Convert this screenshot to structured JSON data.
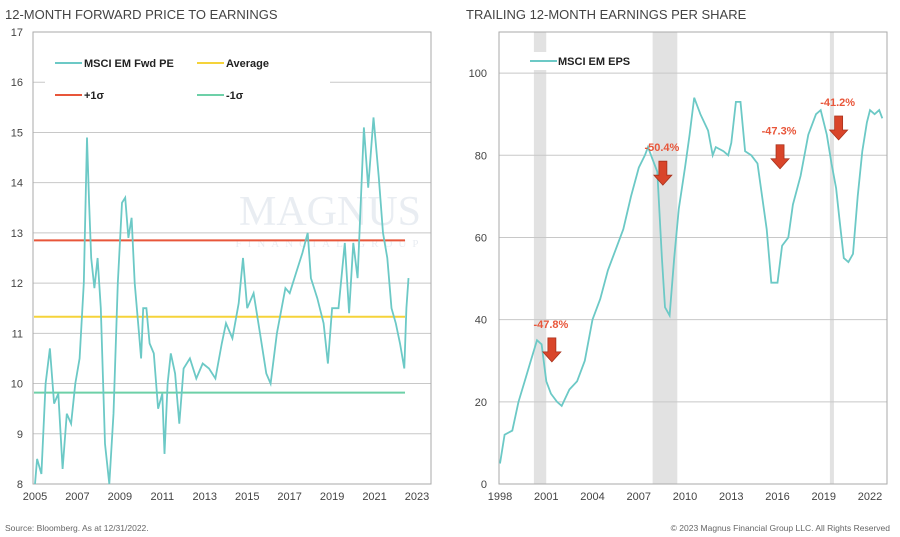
{
  "footer": {
    "source": "Source: Bloomberg. As at 12/31/2022.",
    "copyright": "© 2023 Magnus Financial Group LLC. All Rights Reserved"
  },
  "watermark": {
    "text": "MAGNUS",
    "sub": "FINANCIAL GROUP"
  },
  "colors": {
    "series": "#6cc9c6",
    "average": "#f5d33a",
    "plus": "#e8563a",
    "minus": "#6dd0a8",
    "recession": "#e2e2e2",
    "arrow": "#d9452a"
  },
  "chart_data": [
    {
      "type": "line",
      "title": "12-MONTH FORWARD PRICE TO EARNINGS",
      "xlim": [
        2005,
        2023
      ],
      "ylim": [
        8,
        17
      ],
      "xticks": [
        "2005",
        "2007",
        "2009",
        "2011",
        "2013",
        "2015",
        "2017",
        "2019",
        "2021",
        "2023"
      ],
      "yticks": [
        "8",
        "9",
        "10",
        "11",
        "12",
        "13",
        "14",
        "15",
        "16",
        "17"
      ],
      "legend": [
        "MSCI EM Fwd PE",
        "Average",
        "+1σ",
        "-1σ"
      ],
      "legend_position": "top-left",
      "reference_lines": {
        "average": 11.33,
        "plus_1_sigma": 12.85,
        "minus_1_sigma": 9.82
      },
      "series": [
        {
          "name": "MSCI EM Fwd PE",
          "points": [
            [
              2005.0,
              8.0
            ],
            [
              2005.1,
              8.5
            ],
            [
              2005.3,
              8.2
            ],
            [
              2005.5,
              10.0
            ],
            [
              2005.7,
              10.7
            ],
            [
              2005.9,
              9.6
            ],
            [
              2006.1,
              9.8
            ],
            [
              2006.3,
              8.3
            ],
            [
              2006.5,
              9.4
            ],
            [
              2006.7,
              9.2
            ],
            [
              2006.9,
              10.0
            ],
            [
              2007.1,
              10.5
            ],
            [
              2007.3,
              12.0
            ],
            [
              2007.45,
              14.9
            ],
            [
              2007.55,
              13.6
            ],
            [
              2007.65,
              12.5
            ],
            [
              2007.8,
              11.9
            ],
            [
              2007.95,
              12.5
            ],
            [
              2008.1,
              11.5
            ],
            [
              2008.3,
              8.8
            ],
            [
              2008.5,
              8.0
            ],
            [
              2008.7,
              9.4
            ],
            [
              2008.9,
              12.0
            ],
            [
              2009.1,
              13.6
            ],
            [
              2009.25,
              13.7
            ],
            [
              2009.4,
              12.9
            ],
            [
              2009.55,
              13.3
            ],
            [
              2009.7,
              12.0
            ],
            [
              2009.9,
              11.0
            ],
            [
              2010.0,
              10.5
            ],
            [
              2010.1,
              11.5
            ],
            [
              2010.25,
              11.5
            ],
            [
              2010.4,
              10.8
            ],
            [
              2010.6,
              10.6
            ],
            [
              2010.8,
              9.5
            ],
            [
              2011.0,
              9.8
            ],
            [
              2011.1,
              8.6
            ],
            [
              2011.25,
              10.0
            ],
            [
              2011.4,
              10.6
            ],
            [
              2011.6,
              10.2
            ],
            [
              2011.8,
              9.2
            ],
            [
              2012.0,
              10.3
            ],
            [
              2012.3,
              10.5
            ],
            [
              2012.6,
              10.1
            ],
            [
              2012.9,
              10.4
            ],
            [
              2013.2,
              10.3
            ],
            [
              2013.5,
              10.1
            ],
            [
              2013.8,
              10.8
            ],
            [
              2014.0,
              11.2
            ],
            [
              2014.3,
              10.9
            ],
            [
              2014.6,
              11.6
            ],
            [
              2014.8,
              12.5
            ],
            [
              2015.0,
              11.5
            ],
            [
              2015.3,
              11.8
            ],
            [
              2015.6,
              11.0
            ],
            [
              2015.9,
              10.2
            ],
            [
              2016.1,
              10.0
            ],
            [
              2016.4,
              11.0
            ],
            [
              2016.8,
              11.9
            ],
            [
              2017.0,
              11.8
            ],
            [
              2017.3,
              12.2
            ],
            [
              2017.6,
              12.6
            ],
            [
              2017.85,
              13.0
            ],
            [
              2018.0,
              12.1
            ],
            [
              2018.3,
              11.7
            ],
            [
              2018.6,
              11.2
            ],
            [
              2018.8,
              10.4
            ],
            [
              2019.0,
              11.5
            ],
            [
              2019.3,
              11.5
            ],
            [
              2019.6,
              12.8
            ],
            [
              2019.8,
              11.4
            ],
            [
              2020.0,
              12.8
            ],
            [
              2020.2,
              12.1
            ],
            [
              2020.5,
              15.1
            ],
            [
              2020.7,
              13.9
            ],
            [
              2020.95,
              15.3
            ],
            [
              2021.2,
              14.1
            ],
            [
              2021.4,
              13.0
            ],
            [
              2021.6,
              12.5
            ],
            [
              2021.8,
              11.5
            ],
            [
              2022.0,
              11.2
            ],
            [
              2022.2,
              10.8
            ],
            [
              2022.4,
              10.3
            ],
            [
              2022.5,
              11.5
            ],
            [
              2022.6,
              12.1
            ]
          ]
        }
      ]
    },
    {
      "type": "line",
      "title": "TRAILING 12-MONTH EARNINGS PER SHARE",
      "xlim": [
        1998,
        2023.1
      ],
      "ylim": [
        0,
        110
      ],
      "xticks": [
        "1998",
        "2001",
        "2004",
        "2007",
        "2010",
        "2013",
        "2016",
        "2019",
        "2022"
      ],
      "yticks": [
        "0",
        "20",
        "40",
        "60",
        "80",
        "100"
      ],
      "legend": [
        "MSCI EM EPS"
      ],
      "legend_position": "top-left",
      "recessions": [
        [
          2000.2,
          2001.0
        ],
        [
          2007.9,
          2009.5
        ],
        [
          2019.4,
          2019.6
        ]
      ],
      "annotations": [
        {
          "text": "-47.8%",
          "x": 2001.3,
          "y": 38
        },
        {
          "text": "-50.4%",
          "x": 2008.5,
          "y": 81
        },
        {
          "text": "-47.3%",
          "x": 2016.1,
          "y": 85
        },
        {
          "text": "-41.2%",
          "x": 2019.9,
          "y": 92
        }
      ],
      "series": [
        {
          "name": "MSCI EM EPS",
          "points": [
            [
              1998.0,
              5
            ],
            [
              1998.3,
              12
            ],
            [
              1998.8,
              13
            ],
            [
              1999.2,
              20
            ],
            [
              1999.6,
              25
            ],
            [
              2000.0,
              30
            ],
            [
              2000.4,
              35
            ],
            [
              2000.7,
              34
            ],
            [
              2001.0,
              25
            ],
            [
              2001.3,
              22
            ],
            [
              2001.7,
              20
            ],
            [
              2002.0,
              19
            ],
            [
              2002.5,
              23
            ],
            [
              2003.0,
              25
            ],
            [
              2003.5,
              30
            ],
            [
              2004.0,
              40
            ],
            [
              2004.5,
              45
            ],
            [
              2005.0,
              52
            ],
            [
              2005.5,
              57
            ],
            [
              2006.0,
              62
            ],
            [
              2006.5,
              70
            ],
            [
              2007.0,
              77
            ],
            [
              2007.4,
              80
            ],
            [
              2007.6,
              82
            ],
            [
              2007.9,
              79
            ],
            [
              2008.2,
              76
            ],
            [
              2008.5,
              55
            ],
            [
              2008.7,
              43
            ],
            [
              2009.0,
              41
            ],
            [
              2009.3,
              55
            ],
            [
              2009.6,
              67
            ],
            [
              2010.0,
              77
            ],
            [
              2010.3,
              85
            ],
            [
              2010.6,
              94
            ],
            [
              2011.0,
              90
            ],
            [
              2011.5,
              86
            ],
            [
              2011.8,
              80
            ],
            [
              2012.0,
              82
            ],
            [
              2012.5,
              81
            ],
            [
              2012.8,
              80
            ],
            [
              2013.0,
              83
            ],
            [
              2013.3,
              93
            ],
            [
              2013.6,
              93
            ],
            [
              2013.9,
              81
            ],
            [
              2014.3,
              80
            ],
            [
              2014.7,
              78
            ],
            [
              2015.0,
              70
            ],
            [
              2015.3,
              62
            ],
            [
              2015.6,
              49
            ],
            [
              2016.0,
              49
            ],
            [
              2016.3,
              58
            ],
            [
              2016.7,
              60
            ],
            [
              2017.0,
              68
            ],
            [
              2017.5,
              75
            ],
            [
              2018.0,
              85
            ],
            [
              2018.5,
              90
            ],
            [
              2018.8,
              91
            ],
            [
              2019.2,
              85
            ],
            [
              2019.5,
              78
            ],
            [
              2019.8,
              72
            ],
            [
              2020.0,
              65
            ],
            [
              2020.3,
              55
            ],
            [
              2020.6,
              54
            ],
            [
              2020.9,
              56
            ],
            [
              2021.2,
              70
            ],
            [
              2021.5,
              81
            ],
            [
              2021.8,
              88
            ],
            [
              2022.0,
              91
            ],
            [
              2022.3,
              90
            ],
            [
              2022.6,
              91
            ],
            [
              2022.8,
              89
            ]
          ]
        }
      ]
    }
  ]
}
